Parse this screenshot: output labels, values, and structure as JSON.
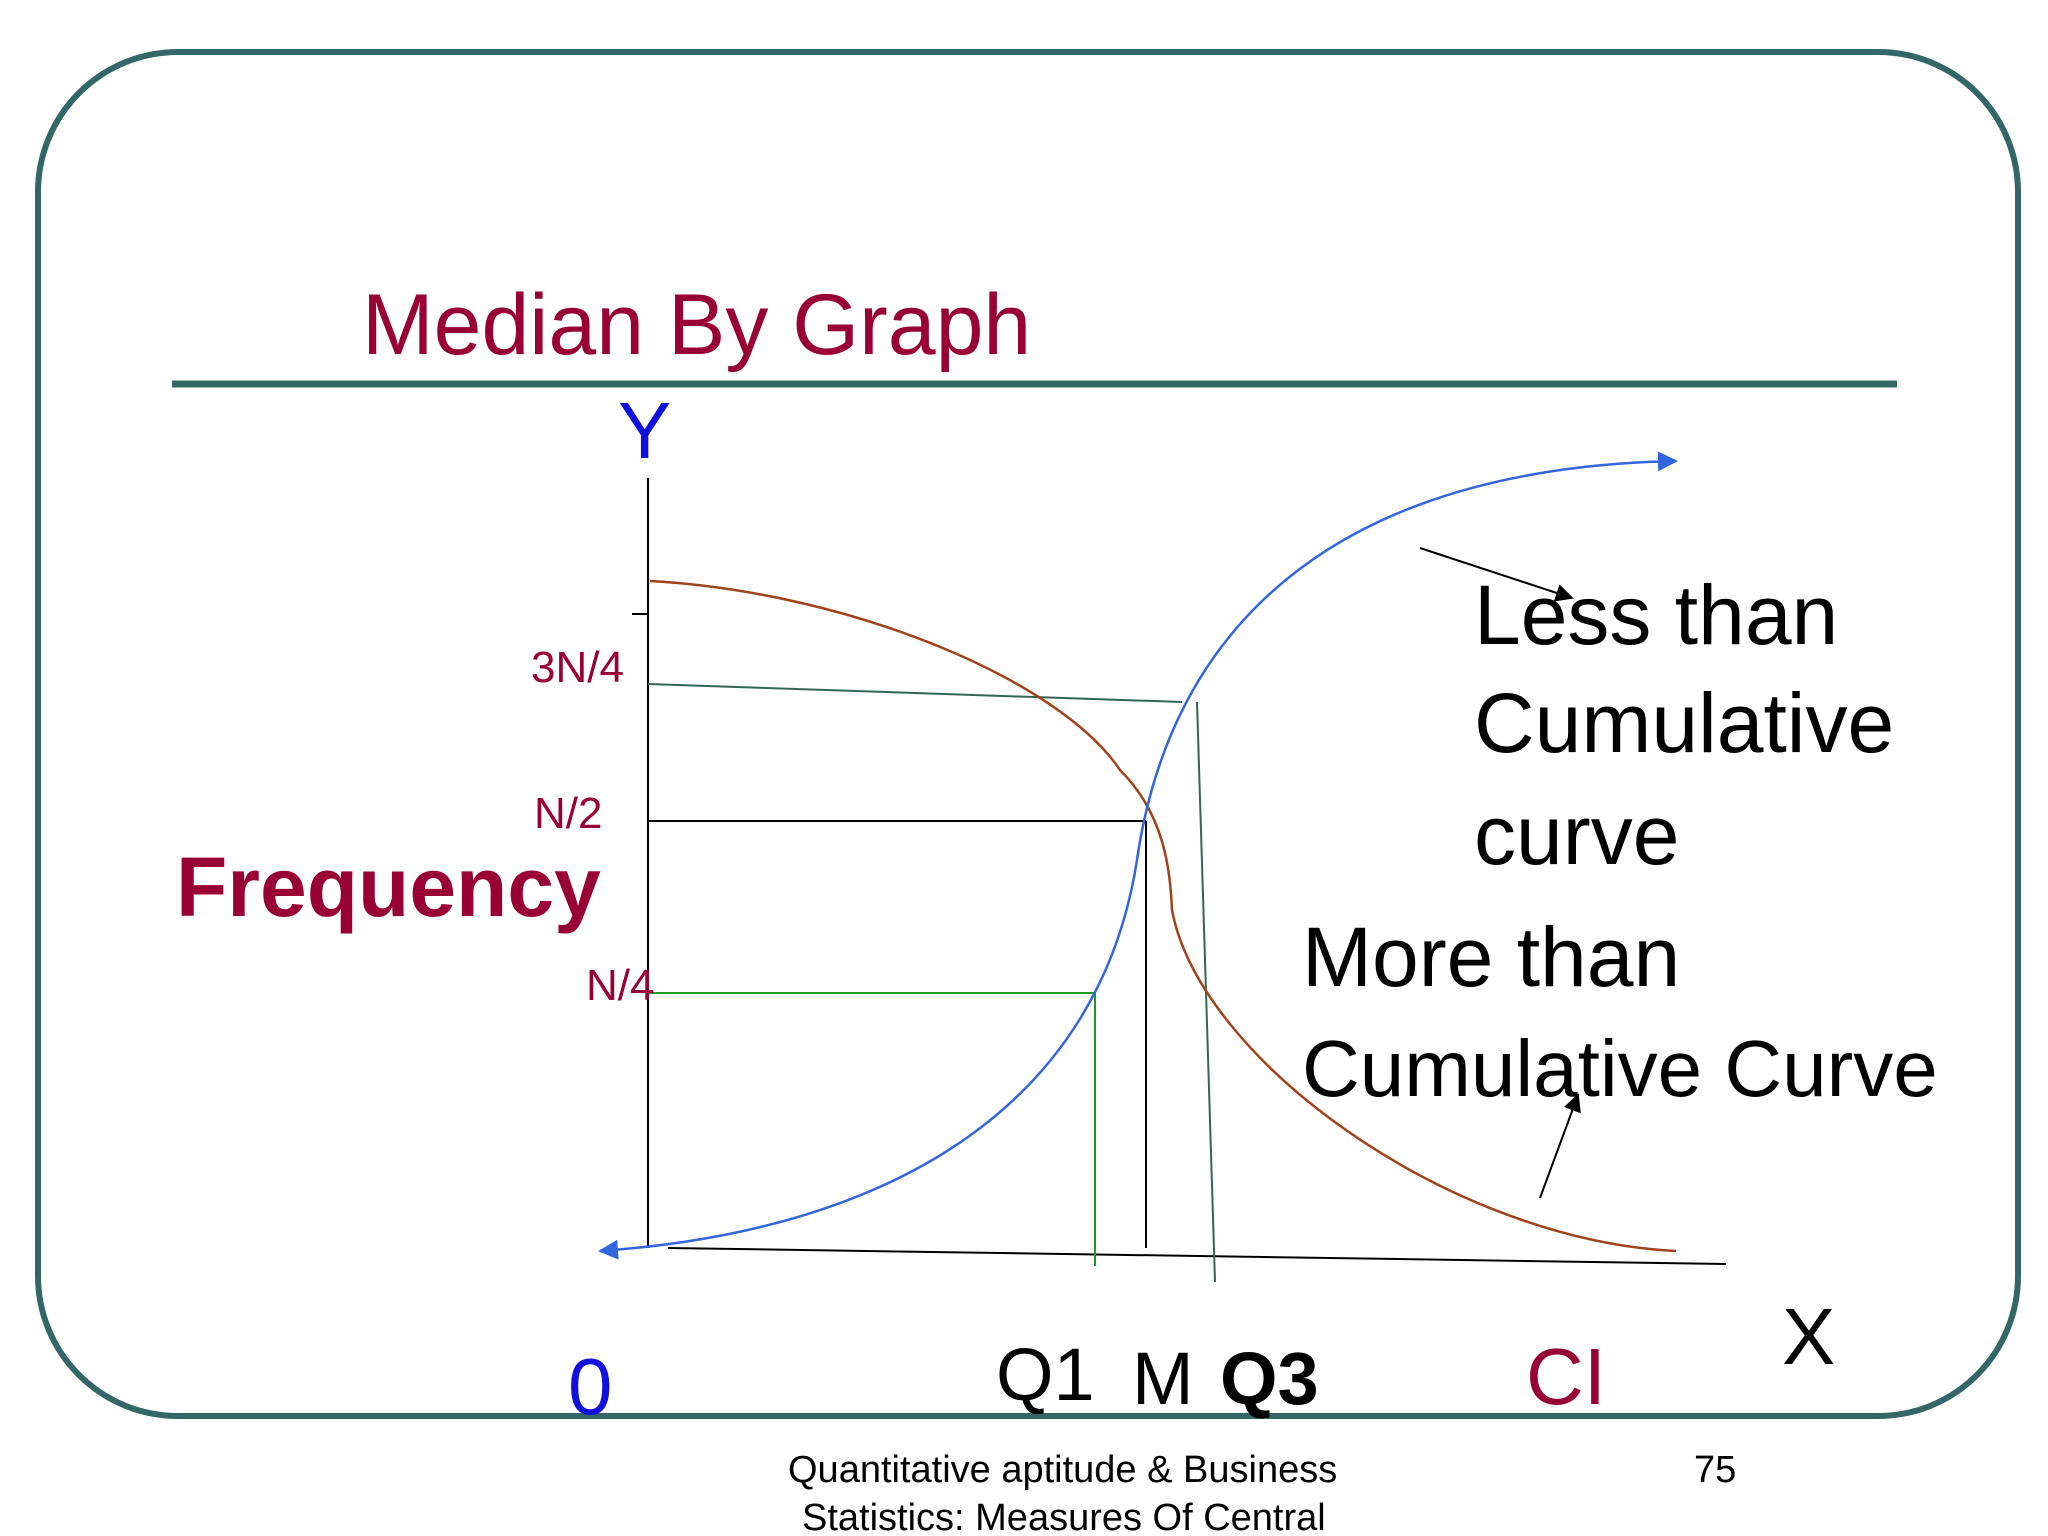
{
  "slide": {
    "title": "Median By Graph",
    "page_number": "75",
    "footer_line1": "Quantitative aptitude & Business",
    "footer_line2": "Statistics: Measures Of Central"
  },
  "axes": {
    "y_axis_label": "Y",
    "x_axis_label": "X",
    "y_title": "Frequency",
    "origin_label": "0",
    "x_title": "CI"
  },
  "y_ticks": {
    "three_quarter": "3N/4",
    "half": "N/2",
    "quarter": "N/4"
  },
  "x_ticks": {
    "q1": "Q1",
    "median": "M",
    "q3": "Q3"
  },
  "annotations": {
    "less_than_line1": "Less than",
    "less_than_line2": "Cumulative",
    "less_than_line3": "curve",
    "more_than_line1": "More than",
    "more_than_line2": "Cumulative Curve"
  },
  "colors": {
    "frame": "#336666",
    "title": "#990033",
    "axis_label_blue": "#1111dd",
    "less_than_curve": "#3366dd",
    "more_than_curve": "#a0421a",
    "quartile_line_q1": "#229922",
    "quartile_line_q3": "#336655",
    "median_line": "#000000",
    "text": "#000000"
  }
}
